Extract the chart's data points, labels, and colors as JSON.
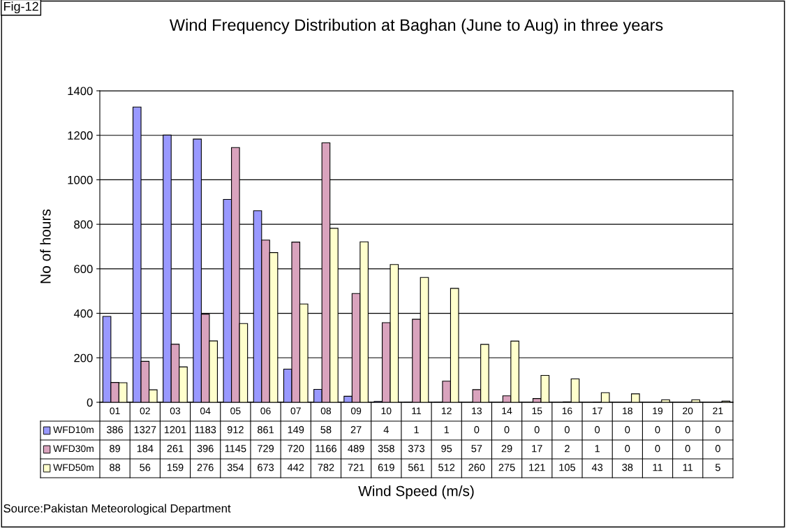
{
  "chart_data": {
    "type": "bar",
    "title": "Wind Frequency Distribution at Baghan (June to Aug) in three years",
    "xlabel": "Wind Speed (m/s)",
    "ylabel": "No of hours",
    "categories": [
      "01",
      "02",
      "03",
      "04",
      "05",
      "06",
      "07",
      "08",
      "09",
      "10",
      "11",
      "12",
      "13",
      "14",
      "15",
      "16",
      "17",
      "18",
      "19",
      "20",
      "21"
    ],
    "series": [
      {
        "name": "WFD10m",
        "color": "#9999ff",
        "values": [
          386,
          1327,
          1201,
          1183,
          912,
          861,
          149,
          58,
          27,
          4,
          1,
          1,
          0,
          0,
          0,
          0,
          0,
          0,
          0,
          0,
          0
        ]
      },
      {
        "name": "WFD30m",
        "color": "#d9a3bd",
        "values": [
          89,
          184,
          261,
          396,
          1145,
          729,
          720,
          1166,
          489,
          358,
          373,
          95,
          57,
          29,
          17,
          2,
          1,
          0,
          0,
          0,
          0
        ]
      },
      {
        "name": "WFD50m",
        "color": "#ffffcc",
        "values": [
          88,
          56,
          159,
          276,
          354,
          673,
          442,
          782,
          721,
          619,
          561,
          512,
          260,
          275,
          121,
          105,
          43,
          38,
          11,
          11,
          5
        ]
      }
    ],
    "ylim": [
      0,
      1400
    ],
    "yticks": [
      0,
      200,
      400,
      600,
      800,
      1000,
      1200,
      1400
    ],
    "grid": "y",
    "data_labels": true,
    "legend": "bottom left",
    "annotations": [
      "Fig-12",
      "Source:Pakistan Meteorological Department"
    ]
  }
}
